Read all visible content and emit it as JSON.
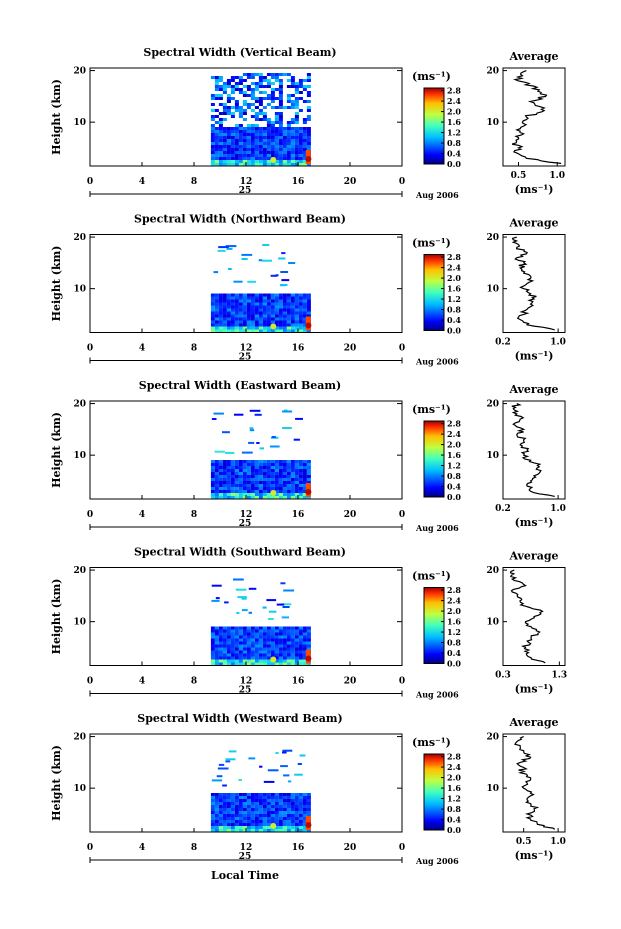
{
  "figure": {
    "xlabel": "Local Time",
    "date_label": "Aug 2006",
    "day_label": "25",
    "unit_label": "(ms⁻¹)",
    "avg_title": "Average"
  },
  "chart_data": [
    {
      "type": "heatmap",
      "title": "Spectral Width (Vertical Beam)",
      "ylabel": "Height (km)",
      "xlim": [
        0,
        24
      ],
      "x_ticks": [
        "0",
        "4",
        "8",
        "12",
        "16",
        "20",
        "0"
      ],
      "ylim": [
        1.5,
        20.5
      ],
      "y_ticks": [
        "20",
        "10"
      ],
      "data_x_range": [
        9.3,
        16.9
      ],
      "data_top_km": 20,
      "colorbar": {
        "range": [
          0,
          2.9
        ],
        "ticks": [
          "2.8",
          "2.4",
          "2.0",
          "1.6",
          "1.2",
          "0.8",
          "0.4",
          "0.0"
        ]
      },
      "average_profile": {
        "xlabel": "(ms⁻¹)",
        "x_ticks": [
          "0.5",
          "1.0"
        ],
        "xlim": [
          0.3,
          1.1
        ],
        "y_ticks": [
          "20",
          "10"
        ],
        "ylim": [
          1.5,
          20.5
        ],
        "height_km": [
          2,
          3,
          4,
          5,
          6,
          7,
          8,
          9,
          10,
          11,
          12,
          13,
          14,
          15,
          16,
          17,
          18,
          19,
          20
        ],
        "values": [
          1.05,
          0.6,
          0.48,
          0.5,
          0.47,
          0.5,
          0.52,
          0.53,
          0.55,
          0.6,
          0.8,
          0.78,
          0.65,
          0.85,
          0.75,
          0.7,
          0.5,
          0.55,
          0.6
        ]
      }
    },
    {
      "type": "heatmap",
      "title": "Spectral Width (Northward Beam)",
      "ylabel": "Height (km)",
      "xlim": [
        0,
        24
      ],
      "x_ticks": [
        "0",
        "4",
        "8",
        "12",
        "16",
        "20",
        "0"
      ],
      "ylim": [
        1.5,
        20.5
      ],
      "y_ticks": [
        "20",
        "10"
      ],
      "data_x_range": [
        9.3,
        16.9
      ],
      "data_top_km": 9.5,
      "colorbar": {
        "range": [
          0,
          2.9
        ],
        "ticks": [
          "2.8",
          "2.4",
          "2.0",
          "1.6",
          "1.2",
          "0.8",
          "0.4",
          "0.0"
        ]
      },
      "average_profile": {
        "xlabel": "(ms⁻¹)",
        "x_ticks": [
          "0.2",
          "1.0"
        ],
        "xlim": [
          0.2,
          1.1
        ],
        "y_ticks": [
          "20",
          "10"
        ],
        "ylim": [
          1.5,
          20.5
        ],
        "height_km": [
          2,
          3,
          4,
          5,
          6,
          7,
          8,
          9,
          10,
          11,
          12,
          13,
          14,
          15,
          16,
          17,
          18,
          19,
          20
        ],
        "values": [
          0.95,
          0.55,
          0.45,
          0.5,
          0.55,
          0.6,
          0.65,
          0.6,
          0.5,
          0.55,
          0.6,
          0.5,
          0.45,
          0.5,
          0.4,
          0.55,
          0.4,
          0.35,
          0.4
        ]
      }
    },
    {
      "type": "heatmap",
      "title": "Spectral Width (Eastward Beam)",
      "ylabel": "Height (km)",
      "xlim": [
        0,
        24
      ],
      "x_ticks": [
        "0",
        "4",
        "8",
        "12",
        "16",
        "20",
        "0"
      ],
      "ylim": [
        1.5,
        20.5
      ],
      "y_ticks": [
        "20",
        "10"
      ],
      "data_x_range": [
        9.3,
        16.9
      ],
      "data_top_km": 9.5,
      "colorbar": {
        "range": [
          0,
          2.9
        ],
        "ticks": [
          "2.8",
          "2.4",
          "2.0",
          "1.6",
          "1.2",
          "0.8",
          "0.4",
          "0.0"
        ]
      },
      "average_profile": {
        "xlabel": "(ms⁻¹)",
        "x_ticks": [
          "0.2",
          "1.0"
        ],
        "xlim": [
          0.2,
          1.1
        ],
        "y_ticks": [
          "20",
          "10"
        ],
        "ylim": [
          1.5,
          20.5
        ],
        "height_km": [
          2,
          3,
          4,
          5,
          6,
          7,
          8,
          9,
          10,
          11,
          12,
          13,
          14,
          15,
          16,
          17,
          18,
          19,
          20
        ],
        "values": [
          0.95,
          0.6,
          0.55,
          0.6,
          0.65,
          0.75,
          0.7,
          0.6,
          0.5,
          0.55,
          0.45,
          0.5,
          0.4,
          0.5,
          0.35,
          0.45,
          0.4,
          0.35,
          0.4
        ]
      }
    },
    {
      "type": "heatmap",
      "title": "Spectral Width (Southward Beam)",
      "ylabel": "Height (km)",
      "xlim": [
        0,
        24
      ],
      "x_ticks": [
        "0",
        "4",
        "8",
        "12",
        "16",
        "20",
        "0"
      ],
      "ylim": [
        1.5,
        20.5
      ],
      "y_ticks": [
        "20",
        "10"
      ],
      "data_x_range": [
        9.3,
        16.9
      ],
      "data_top_km": 9.5,
      "colorbar": {
        "range": [
          0,
          2.9
        ],
        "ticks": [
          "2.8",
          "2.4",
          "2.0",
          "1.6",
          "1.2",
          "0.8",
          "0.4",
          "0.0"
        ]
      },
      "average_profile": {
        "xlabel": "(ms⁻¹)",
        "x_ticks": [
          "0.3",
          "1.3"
        ],
        "xlim": [
          0.3,
          1.4
        ],
        "y_ticks": [
          "20",
          "10"
        ],
        "ylim": [
          1.5,
          20.5
        ],
        "height_km": [
          2,
          3,
          4,
          5,
          6,
          7,
          8,
          9,
          10,
          11,
          12,
          13,
          14,
          15,
          16,
          17,
          18,
          19,
          20
        ],
        "values": [
          1.05,
          0.8,
          0.75,
          0.7,
          0.75,
          0.8,
          0.95,
          0.8,
          0.7,
          0.85,
          1.0,
          0.7,
          0.6,
          0.55,
          0.45,
          0.7,
          0.5,
          0.45,
          0.5
        ]
      }
    },
    {
      "type": "heatmap",
      "title": "Spectral Width (Westward Beam)",
      "ylabel": "Height (km)",
      "xlim": [
        0,
        24
      ],
      "x_ticks": [
        "0",
        "4",
        "8",
        "12",
        "16",
        "20",
        "0"
      ],
      "ylim": [
        1.5,
        20.5
      ],
      "y_ticks": [
        "20",
        "10"
      ],
      "data_x_range": [
        9.3,
        16.9
      ],
      "data_top_km": 9.5,
      "colorbar": {
        "range": [
          0,
          2.9
        ],
        "ticks": [
          "2.8",
          "2.4",
          "2.0",
          "1.6",
          "1.2",
          "0.8",
          "0.4",
          "0.0"
        ]
      },
      "average_profile": {
        "xlabel": "(ms⁻¹)",
        "x_ticks": [
          "0.5",
          "1.0"
        ],
        "xlim": [
          0.2,
          1.1
        ],
        "y_ticks": [
          "20",
          "10"
        ],
        "ylim": [
          1.5,
          20.5
        ],
        "height_km": [
          2,
          3,
          4,
          5,
          6,
          7,
          8,
          9,
          10,
          11,
          12,
          13,
          14,
          15,
          16,
          17,
          18,
          19,
          20
        ],
        "values": [
          0.95,
          0.7,
          0.6,
          0.55,
          0.65,
          0.6,
          0.55,
          0.6,
          0.5,
          0.55,
          0.6,
          0.45,
          0.5,
          0.45,
          0.6,
          0.5,
          0.45,
          0.4,
          0.5
        ]
      }
    }
  ]
}
